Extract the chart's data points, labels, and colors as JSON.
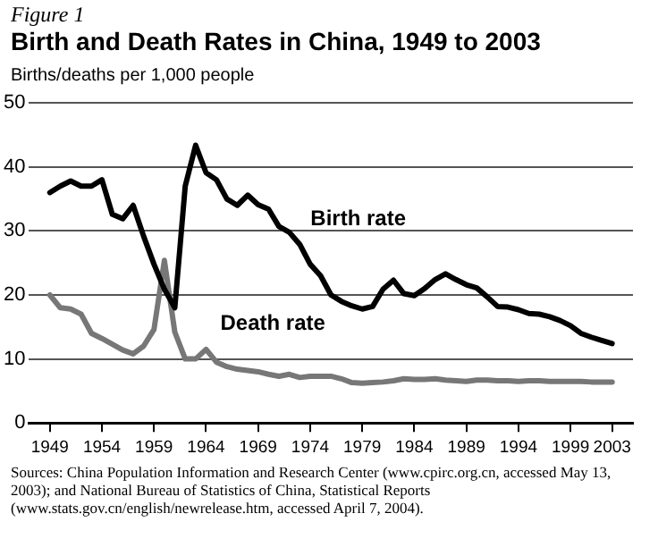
{
  "chart_data": {
    "type": "line",
    "title": "Birth and Death Rates in China, 1949 to 2003",
    "ylabel": "Births/deaths per 1,000 people",
    "annotations": [
      "Figure 1",
      "Sources: China Population Information and Research Center (www.cpirc.org.cn, accessed May 13, 2003); and National Bureau of Statistics of China, Statistical Reports (www.stats.gov.cn/english/newrelease.htm, accessed April 7, 2004)."
    ],
    "x": [
      1949,
      1950,
      1951,
      1952,
      1953,
      1954,
      1955,
      1956,
      1957,
      1958,
      1959,
      1960,
      1961,
      1962,
      1963,
      1964,
      1965,
      1966,
      1967,
      1968,
      1969,
      1970,
      1971,
      1972,
      1973,
      1974,
      1975,
      1976,
      1977,
      1978,
      1979,
      1980,
      1981,
      1982,
      1983,
      1984,
      1985,
      1986,
      1987,
      1988,
      1989,
      1990,
      1991,
      1992,
      1993,
      1994,
      1995,
      1996,
      1997,
      1998,
      1999,
      2000,
      2001,
      2002,
      2003
    ],
    "series": [
      {
        "name": "Birth rate",
        "color": "#000000",
        "values": [
          36,
          37,
          37.8,
          37,
          37,
          38,
          32.6,
          31.9,
          34,
          29.2,
          24.8,
          20.9,
          18,
          37,
          43.4,
          39.1,
          38,
          35,
          34,
          35.6,
          34.1,
          33.4,
          30.7,
          29.8,
          27.9,
          24.8,
          23,
          20,
          19,
          18.3,
          17.8,
          18.2,
          20.9,
          22.3,
          20.2,
          19.9,
          21,
          22.4,
          23.3,
          22.4,
          21.6,
          21.1,
          19.7,
          18.2,
          18.1,
          17.7,
          17.1,
          17,
          16.6,
          16,
          15.2,
          14,
          13.4,
          12.9,
          12.4
        ]
      },
      {
        "name": "Death rate",
        "color": "#777777",
        "values": [
          20,
          18,
          17.8,
          17,
          14,
          13.2,
          12.3,
          11.4,
          10.8,
          12,
          14.6,
          25.4,
          14.2,
          10,
          10,
          11.5,
          9.5,
          8.8,
          8.4,
          8.2,
          8,
          7.6,
          7.3,
          7.6,
          7.1,
          7.3,
          7.3,
          7.3,
          6.9,
          6.3,
          6.2,
          6.3,
          6.4,
          6.6,
          6.9,
          6.8,
          6.8,
          6.9,
          6.7,
          6.6,
          6.5,
          6.7,
          6.7,
          6.6,
          6.6,
          6.5,
          6.6,
          6.6,
          6.5,
          6.5,
          6.5,
          6.5,
          6.4,
          6.4,
          6.4
        ]
      }
    ],
    "xlim": [
      1947,
      2005
    ],
    "xticks": [
      1949,
      1954,
      1959,
      1964,
      1969,
      1974,
      1979,
      1984,
      1989,
      1994,
      1999,
      2003
    ],
    "ylim": [
      0,
      50
    ],
    "yticks": [
      0,
      10,
      20,
      30,
      40,
      50
    ],
    "grid": "y",
    "legend": false
  }
}
